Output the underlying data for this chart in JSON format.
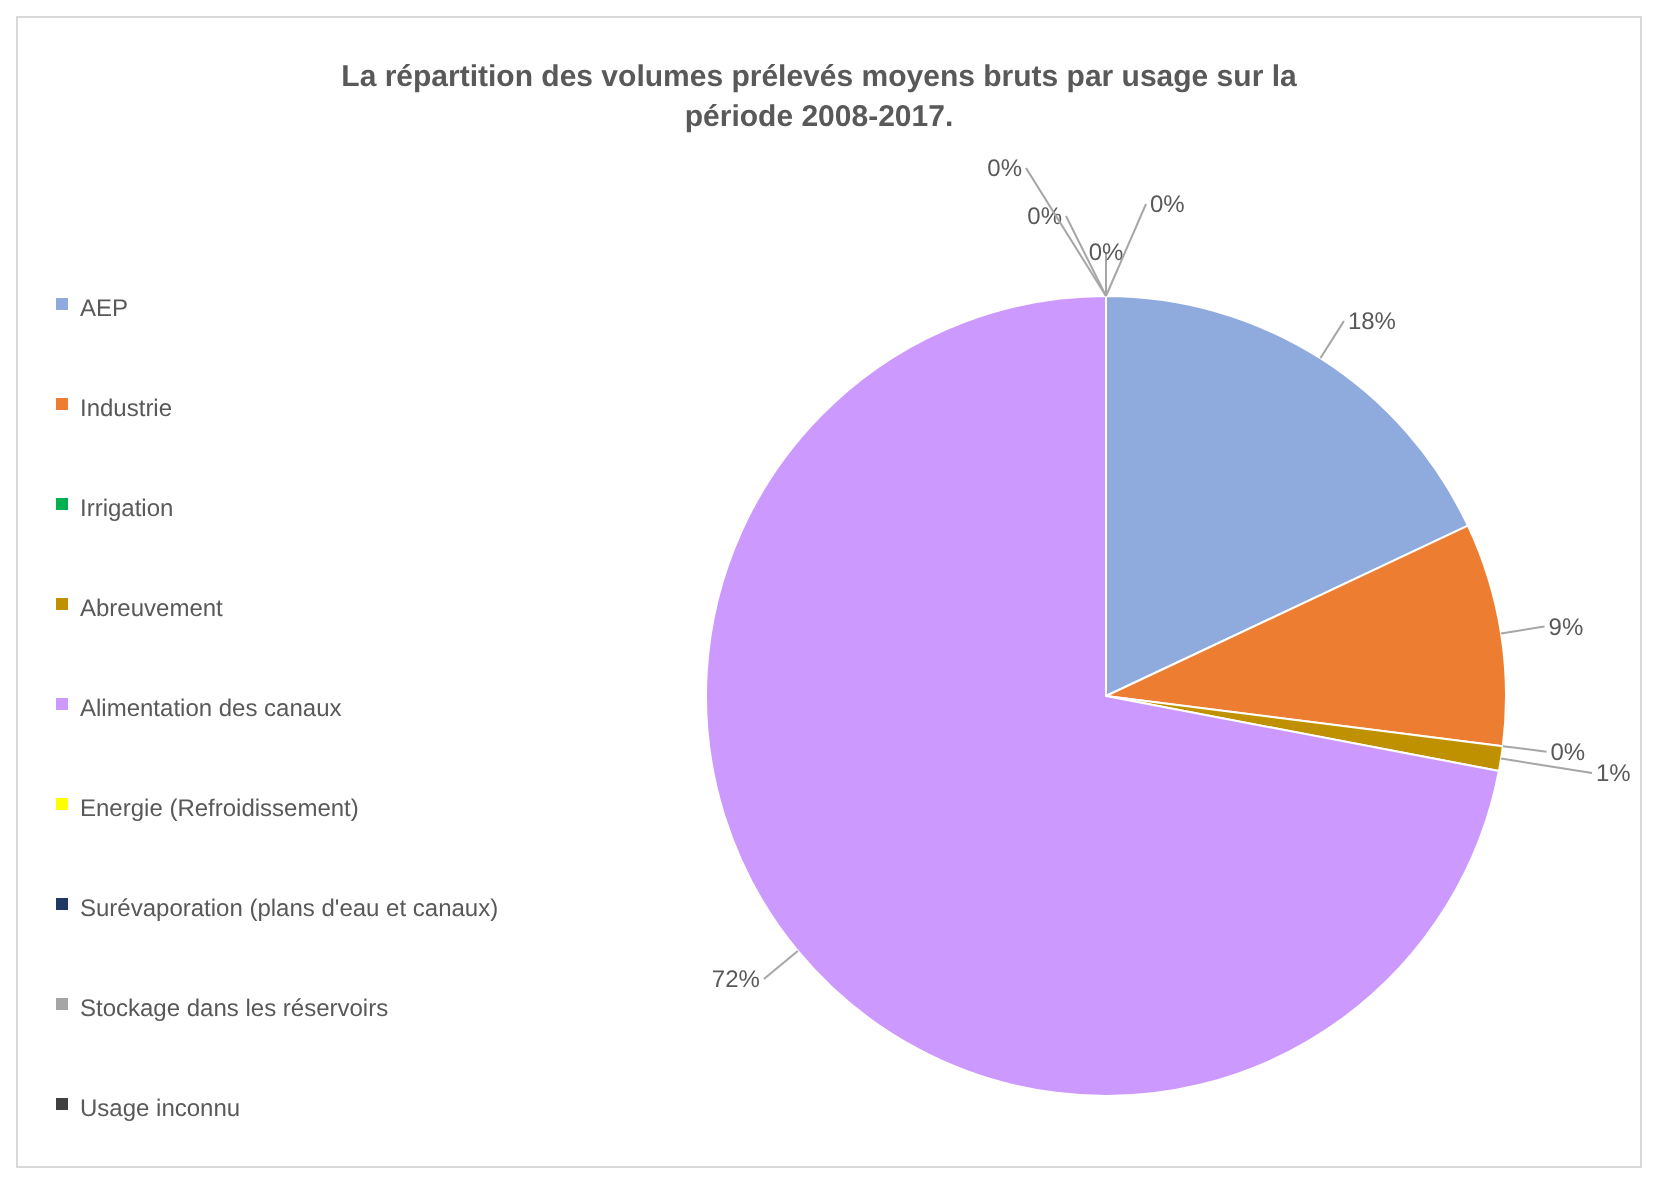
{
  "chart_data": {
    "type": "pie",
    "title": "La répartition des volumes prélevés moyens bruts par usage sur la période 2008-2017.",
    "categories": [
      "AEP",
      "Industrie",
      "Irrigation",
      "Abreuvement",
      "Alimentation des canaux",
      "Energie (Refroidissement)",
      "Surévaporation (plans d'eau et canaux)",
      "Stockage dans les réservoirs",
      "Usage inconnu"
    ],
    "values": [
      18,
      9,
      0,
      1,
      72,
      0,
      0,
      0,
      0
    ],
    "value_labels": [
      "18%",
      "9%",
      "0%",
      "1%",
      "72%",
      "0%",
      "0%",
      "0%",
      "0%"
    ],
    "colors": [
      "#8faadc",
      "#ed7d31",
      "#00b050",
      "#bf9000",
      "#cc99ff",
      "#ffff00",
      "#1f3864",
      "#a5a5a5",
      "#404040"
    ],
    "legend": "left"
  }
}
